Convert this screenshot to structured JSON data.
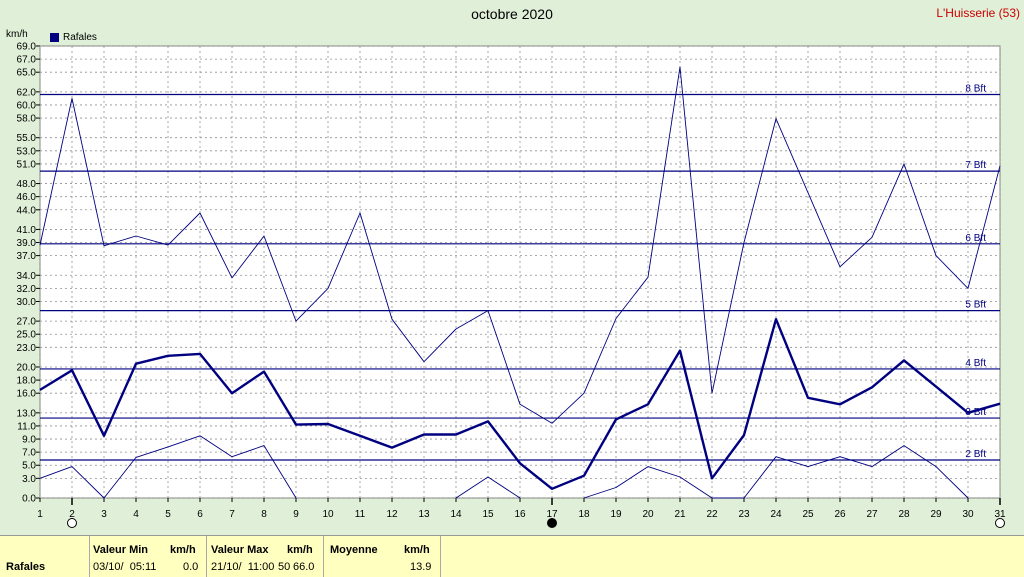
{
  "title": "octobre 2020",
  "station": "L'Huisserie (53)",
  "unit": "km/h",
  "legend": "Rafales",
  "colors": {
    "bg": "#e0f0d8",
    "series": "#000080",
    "grid": "#808080",
    "footer": "#ffffc0"
  },
  "chart_data": {
    "type": "line",
    "x": [
      1,
      2,
      3,
      4,
      5,
      6,
      7,
      8,
      9,
      10,
      11,
      12,
      13,
      14,
      15,
      16,
      17,
      18,
      19,
      20,
      21,
      22,
      23,
      24,
      25,
      26,
      27,
      28,
      29,
      30,
      31
    ],
    "xlim": [
      1,
      31
    ],
    "ylim": [
      0,
      69
    ],
    "y_ticks": [
      0.0,
      3.0,
      5.0,
      7.0,
      9.0,
      11.0,
      13.0,
      16.0,
      18.0,
      20.0,
      23.0,
      25.0,
      27.0,
      30.0,
      32.0,
      34.0,
      37.0,
      39.0,
      41.0,
      44.0,
      46.0,
      48.0,
      51.0,
      53.0,
      55.0,
      58.0,
      60.0,
      62.0,
      65.0,
      67.0,
      69.0
    ],
    "ylabel": "km/h",
    "grid": true,
    "series": [
      {
        "name": "Rafales",
        "role": "mean",
        "values": [
          16.5,
          19.5,
          9.5,
          20.5,
          21.7,
          22.0,
          16.0,
          19.3,
          11.2,
          11.3,
          9.5,
          7.7,
          9.7,
          9.7,
          11.7,
          5.3,
          1.4,
          3.4,
          12.0,
          14.3,
          22.5,
          3.0,
          9.6,
          27.3,
          15.3,
          14.3,
          16.9,
          21.0,
          17.0,
          13.0,
          14.4
        ]
      },
      {
        "role": "max",
        "values": [
          38.6,
          61.0,
          38.5,
          40.0,
          38.6,
          43.5,
          33.6,
          40.0,
          27.0,
          32.0,
          43.5,
          27.3,
          20.8,
          25.8,
          28.6,
          14.3,
          11.4,
          16.0,
          27.4,
          33.7,
          65.8,
          16.0,
          39.0,
          57.9,
          46.6,
          35.3,
          39.8,
          51.0,
          37.0,
          32.0,
          50.7
        ]
      },
      {
        "role": "min",
        "values": [
          3.0,
          4.8,
          0.0,
          6.2,
          7.8,
          9.5,
          6.3,
          8.0,
          0.0,
          null,
          null,
          null,
          null,
          0.0,
          3.2,
          0.0,
          null,
          0.0,
          1.6,
          4.8,
          3.2,
          0.0,
          0.0,
          6.3,
          4.8,
          6.3,
          4.8,
          8.0,
          4.8,
          0.0,
          null
        ]
      }
    ],
    "reference_lines": [
      {
        "value": 5.8,
        "label": "2 Bft"
      },
      {
        "value": 12.2,
        "label": "3 Bft"
      },
      {
        "value": 19.7,
        "label": "4 Bft"
      },
      {
        "value": 28.6,
        "label": "5 Bft"
      },
      {
        "value": 38.8,
        "label": "6 Bft"
      },
      {
        "value": 49.9,
        "label": "7 Bft"
      },
      {
        "value": 61.6,
        "label": "8 Bft"
      }
    ],
    "markers": [
      {
        "x": 2,
        "type": "open-circle"
      },
      {
        "x": 17,
        "type": "filled-circle"
      },
      {
        "x": 31,
        "type": "open-circle"
      }
    ]
  },
  "footer": {
    "label": "Rafales",
    "min_header": "Valeur Min",
    "min_unit": "km/h",
    "min_date": "03/10/  05:11",
    "min_value": "0.0",
    "max_header": "Valeur Max",
    "max_unit": "km/h",
    "max_date": "21/10/  11:00",
    "max_value": "66.0",
    "max_overlap": "50",
    "avg_header": "Moyenne",
    "avg_unit": "km/h",
    "avg_value": "13.9"
  }
}
